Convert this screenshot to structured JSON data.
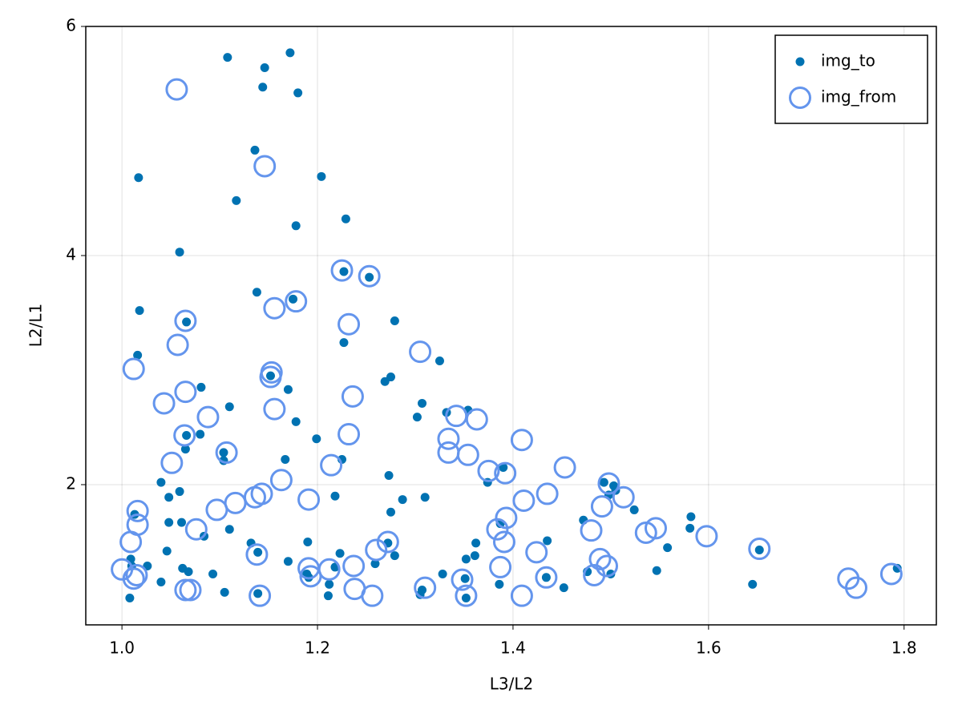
{
  "chart_data": {
    "type": "scatter",
    "x_label": "L3/L2",
    "y_label": "L2/L1",
    "xlim": [
      0.963,
      1.833
    ],
    "ylim": [
      0.776,
      6
    ],
    "xticks": [
      {
        "value": 1,
        "label": "1.0"
      },
      1.2,
      1.4,
      1.6,
      1.8
    ],
    "yticks": [
      2,
      4,
      6
    ],
    "grid": true,
    "legend": "upper right",
    "series": [
      {
        "name": "img_to",
        "color": "#0072b2",
        "marker": "dot",
        "x": [
          1.108,
          1.172,
          1.146,
          1.144,
          1.18,
          1.136,
          1.017,
          1.204,
          1.117,
          1.229,
          1.178,
          1.059,
          1.227,
          1.253,
          1.138,
          1.018,
          1.175,
          1.066,
          1.279,
          1.227,
          1.016,
          1.325,
          1.152,
          1.269,
          1.275,
          1.17,
          1.081,
          1.11,
          1.307,
          1.302,
          1.332,
          1.354,
          1.178,
          1.066,
          1.08,
          1.065,
          1.199,
          1.104,
          1.104,
          1.167,
          1.225,
          1.374,
          1.39,
          1.273,
          1.04,
          1.059,
          1.048,
          1.218,
          1.287,
          1.31,
          1.275,
          1.493,
          1.503,
          1.498,
          1.524,
          1.505,
          1.013,
          1.061,
          1.11,
          1.048,
          1.084,
          1.132,
          1.19,
          1.272,
          1.362,
          1.387,
          1.472,
          1.435,
          1.582,
          1.581,
          1.558,
          1.652,
          1.046,
          1.139,
          1.17,
          1.223,
          1.279,
          1.352,
          1.361,
          1.009,
          1.026,
          1.062,
          1.068,
          1.093,
          1.189,
          1.218,
          1.259,
          1.328,
          1.5,
          1.547,
          1.793,
          1.04,
          1.212,
          1.191,
          1.351,
          1.386,
          1.434,
          1.452,
          1.645,
          1.105,
          1.139,
          1.211,
          1.307,
          1.305,
          1.008,
          1.352,
          1.01,
          1.476
        ],
        "values": [
          5.73,
          5.77,
          5.64,
          5.47,
          5.42,
          4.92,
          4.68,
          4.69,
          4.48,
          4.32,
          4.26,
          4.03,
          3.86,
          3.81,
          3.68,
          3.52,
          3.62,
          3.42,
          3.43,
          3.24,
          3.13,
          3.08,
          2.95,
          2.9,
          2.94,
          2.83,
          2.85,
          2.68,
          2.71,
          2.59,
          2.63,
          2.65,
          2.55,
          2.43,
          2.44,
          2.31,
          2.4,
          2.28,
          2.21,
          2.22,
          2.22,
          2.02,
          2.15,
          2.08,
          2.02,
          1.94,
          1.89,
          1.9,
          1.87,
          1.89,
          1.76,
          2.02,
          1.99,
          1.91,
          1.78,
          1.95,
          1.74,
          1.67,
          1.61,
          1.67,
          1.55,
          1.49,
          1.5,
          1.49,
          1.49,
          1.66,
          1.69,
          1.51,
          1.72,
          1.62,
          1.45,
          1.43,
          1.42,
          1.41,
          1.33,
          1.4,
          1.38,
          1.35,
          1.38,
          1.35,
          1.29,
          1.27,
          1.24,
          1.22,
          1.22,
          1.28,
          1.31,
          1.22,
          1.22,
          1.25,
          1.27,
          1.15,
          1.13,
          1.19,
          1.18,
          1.13,
          1.19,
          1.1,
          1.13,
          1.06,
          1.05,
          1.03,
          1.08,
          1.04,
          1.01,
          1.01,
          1.29,
          1.24
        ]
      },
      {
        "name": "img_from",
        "color": "#6495ed",
        "marker": "ring",
        "x": [
          1.056,
          1.146,
          1.225,
          1.253,
          1.156,
          1.178,
          1.065,
          1.232,
          1.057,
          1.305,
          1.012,
          1.153,
          1.152,
          1.065,
          1.236,
          1.043,
          1.156,
          1.088,
          1.342,
          1.363,
          1.064,
          1.232,
          1.334,
          1.409,
          1.107,
          1.354,
          1.334,
          1.214,
          1.051,
          1.453,
          1.375,
          1.392,
          1.163,
          1.498,
          1.513,
          1.191,
          1.136,
          1.143,
          1.116,
          1.097,
          1.435,
          1.411,
          1.016,
          1.016,
          1.393,
          1.491,
          1.384,
          1.076,
          1.48,
          1.536,
          1.546,
          1.598,
          1.009,
          1.272,
          1.391,
          1.26,
          1.652,
          1.424,
          1.138,
          1.387,
          1.489,
          1.496,
          1.237,
          1.191,
          1.212,
          1.0,
          1.012,
          1.015,
          1.193,
          1.743,
          1.787,
          1.348,
          1.434,
          1.483,
          1.751,
          1.065,
          1.07,
          1.238,
          1.31,
          1.256,
          1.141,
          1.352,
          1.409
        ],
        "values": [
          5.45,
          4.78,
          3.87,
          3.82,
          3.54,
          3.6,
          3.43,
          3.4,
          3.22,
          3.16,
          3.01,
          2.98,
          2.94,
          2.81,
          2.77,
          2.71,
          2.66,
          2.59,
          2.6,
          2.57,
          2.43,
          2.44,
          2.4,
          2.39,
          2.28,
          2.26,
          2.28,
          2.17,
          2.19,
          2.15,
          2.12,
          2.1,
          2.04,
          2.01,
          1.89,
          1.87,
          1.89,
          1.92,
          1.84,
          1.78,
          1.92,
          1.86,
          1.77,
          1.65,
          1.71,
          1.81,
          1.61,
          1.61,
          1.6,
          1.58,
          1.62,
          1.55,
          1.5,
          1.5,
          1.5,
          1.43,
          1.44,
          1.41,
          1.39,
          1.28,
          1.35,
          1.29,
          1.29,
          1.27,
          1.26,
          1.26,
          1.18,
          1.21,
          1.2,
          1.18,
          1.22,
          1.17,
          1.19,
          1.21,
          1.1,
          1.08,
          1.08,
          1.09,
          1.1,
          1.03,
          1.03,
          1.03,
          1.03
        ]
      }
    ]
  }
}
